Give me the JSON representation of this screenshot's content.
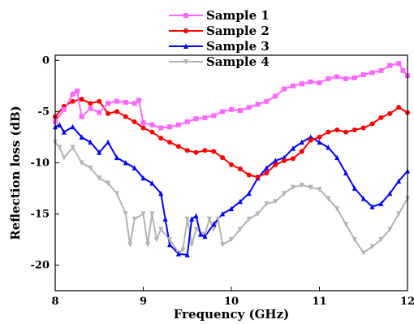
{
  "chart_data": {
    "type": "line",
    "title": "",
    "xlabel": "Frequency (GHz)",
    "ylabel": "Reflection loss (dB)",
    "xlim": [
      8,
      12
    ],
    "ylim": [
      -22.5,
      0.5
    ],
    "xticks": [
      8,
      9,
      10,
      11,
      12
    ],
    "yticks": [
      0,
      -5,
      -10,
      -15,
      -20
    ],
    "xtick_labels": [
      "8",
      "9",
      "10",
      "11",
      "12"
    ],
    "ytick_labels": [
      "0",
      "-5",
      "-10",
      "-15",
      "-20"
    ],
    "grid": false,
    "legend_position": "top-center",
    "series": [
      {
        "name": "Sample 1",
        "color": "#ff66ff",
        "marker": "square",
        "x": [
          8.0,
          8.1,
          8.2,
          8.25,
          8.3,
          8.4,
          8.5,
          8.6,
          8.7,
          8.8,
          8.9,
          8.95,
          9.0,
          9.1,
          9.2,
          9.3,
          9.4,
          9.5,
          9.6,
          9.7,
          9.8,
          9.9,
          10.0,
          10.1,
          10.2,
          10.3,
          10.4,
          10.5,
          10.6,
          10.7,
          10.8,
          10.9,
          11.0,
          11.1,
          11.2,
          11.3,
          11.4,
          11.5,
          11.6,
          11.7,
          11.8,
          11.9,
          11.95,
          12.0
        ],
        "y": [
          -6.0,
          -4.8,
          -3.3,
          -3.0,
          -5.5,
          -4.7,
          -5.1,
          -4.2,
          -4.0,
          -4.1,
          -4.2,
          -3.9,
          -6.1,
          -6.3,
          -6.6,
          -6.5,
          -6.3,
          -6.0,
          -5.7,
          -5.6,
          -5.4,
          -5.0,
          -4.8,
          -4.9,
          -4.6,
          -4.3,
          -4.0,
          -3.5,
          -2.8,
          -2.5,
          -2.3,
          -2.1,
          -2.2,
          -1.8,
          -1.6,
          -1.8,
          -1.7,
          -1.4,
          -1.2,
          -1.0,
          -0.5,
          -0.3,
          -1.0,
          -1.5
        ]
      },
      {
        "name": "Sample 2",
        "color": "#ff0000",
        "marker": "circle",
        "x": [
          8.0,
          8.1,
          8.2,
          8.3,
          8.4,
          8.5,
          8.6,
          8.7,
          8.8,
          8.9,
          9.0,
          9.1,
          9.2,
          9.3,
          9.4,
          9.5,
          9.6,
          9.7,
          9.8,
          9.9,
          10.0,
          10.1,
          10.2,
          10.3,
          10.4,
          10.5,
          10.6,
          10.7,
          10.8,
          10.9,
          11.0,
          11.1,
          11.2,
          11.3,
          11.4,
          11.5,
          11.6,
          11.7,
          11.8,
          11.9,
          12.0
        ],
        "y": [
          -5.5,
          -4.5,
          -4.0,
          -3.8,
          -4.2,
          -4.0,
          -5.2,
          -5.0,
          -5.5,
          -6.0,
          -6.6,
          -7.0,
          -7.6,
          -8.0,
          -8.4,
          -8.8,
          -9.0,
          -8.8,
          -8.9,
          -9.5,
          -10.2,
          -10.6,
          -11.2,
          -11.4,
          -11.0,
          -10.2,
          -9.8,
          -9.6,
          -8.9,
          -7.8,
          -7.5,
          -7.0,
          -6.8,
          -7.0,
          -6.8,
          -6.6,
          -6.2,
          -5.6,
          -5.2,
          -4.6,
          -5.1
        ]
      },
      {
        "name": "Sample 3",
        "color": "#0000ff",
        "marker": "triangle-up",
        "x": [
          8.0,
          8.05,
          8.1,
          8.2,
          8.3,
          8.4,
          8.5,
          8.6,
          8.7,
          8.8,
          8.9,
          9.0,
          9.1,
          9.2,
          9.25,
          9.3,
          9.4,
          9.5,
          9.55,
          9.6,
          9.65,
          9.7,
          9.8,
          9.9,
          10.0,
          10.1,
          10.2,
          10.3,
          10.4,
          10.5,
          10.6,
          10.7,
          10.8,
          10.9,
          11.0,
          11.1,
          11.2,
          11.3,
          11.4,
          11.5,
          11.6,
          11.7,
          11.8,
          11.9,
          12.0
        ],
        "y": [
          -6.5,
          -6.3,
          -7.0,
          -6.5,
          -7.5,
          -8.0,
          -9.0,
          -8.0,
          -9.5,
          -10.0,
          -10.5,
          -11.5,
          -12.0,
          -13.0,
          -15.5,
          -18.0,
          -18.9,
          -19.0,
          -15.5,
          -15.2,
          -17.0,
          -17.2,
          -16.0,
          -15.0,
          -14.5,
          -13.8,
          -13.0,
          -11.5,
          -10.5,
          -9.8,
          -9.5,
          -8.6,
          -8.0,
          -7.5,
          -8.0,
          -8.5,
          -9.5,
          -11.0,
          -12.5,
          -13.5,
          -14.3,
          -14.0,
          -13.0,
          -11.8,
          -10.8
        ]
      },
      {
        "name": "Sample 4",
        "color": "#b3b3b3",
        "marker": "triangle-down",
        "x": [
          8.0,
          8.05,
          8.1,
          8.2,
          8.3,
          8.4,
          8.5,
          8.6,
          8.7,
          8.8,
          8.85,
          8.9,
          9.0,
          9.05,
          9.1,
          9.15,
          9.2,
          9.3,
          9.4,
          9.45,
          9.5,
          9.55,
          9.6,
          9.7,
          9.75,
          9.8,
          9.85,
          9.9,
          10.0,
          10.1,
          10.2,
          10.3,
          10.4,
          10.5,
          10.6,
          10.7,
          10.8,
          10.9,
          11.0,
          11.1,
          11.2,
          11.3,
          11.4,
          11.5,
          11.6,
          11.7,
          11.8,
          11.9,
          12.0
        ],
        "y": [
          -8.0,
          -8.5,
          -9.5,
          -8.5,
          -10.0,
          -10.5,
          -11.5,
          -12.0,
          -13.0,
          -15.0,
          -18.0,
          -15.5,
          -15.0,
          -18.0,
          -15.0,
          -17.5,
          -16.5,
          -17.5,
          -18.8,
          -18.5,
          -15.5,
          -18.0,
          -16.5,
          -17.0,
          -15.5,
          -16.5,
          -15.5,
          -18.0,
          -17.5,
          -16.5,
          -15.5,
          -15.0,
          -14.0,
          -13.8,
          -13.0,
          -12.4,
          -12.2,
          -12.4,
          -12.6,
          -13.5,
          -14.5,
          -16.0,
          -17.5,
          -18.8,
          -18.2,
          -17.5,
          -16.5,
          -15.0,
          -13.5
        ]
      }
    ]
  }
}
